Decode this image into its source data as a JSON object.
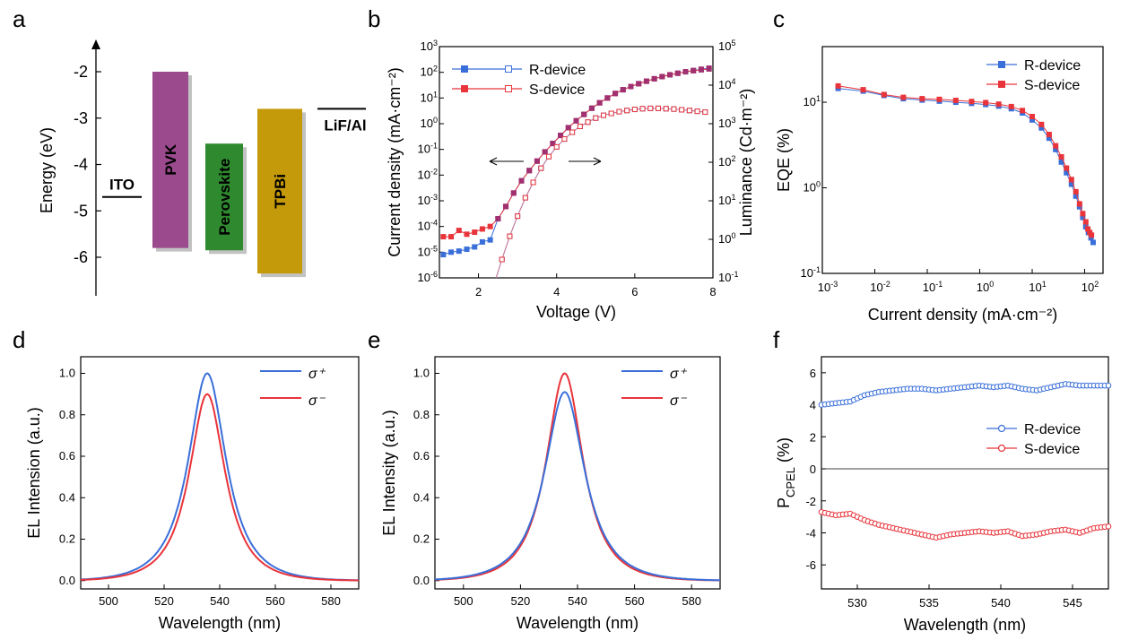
{
  "colors": {
    "blue": "#3a6fd9",
    "red": "#e8343a",
    "purple": "#a03070",
    "pvk": "#9b4a8e",
    "perovskite": "#2f8a2f",
    "tpbi": "#c59a0a"
  },
  "chart_data": [
    {
      "panel": "a",
      "type": "bar",
      "title": "",
      "ylabel": "Energy (eV)",
      "ylim": [
        -6.9,
        -1.4
      ],
      "yticks": [
        -2,
        -3,
        -4,
        -5,
        -6
      ],
      "categories": [
        "ITO",
        "PVK",
        "Perovskite",
        "TPBi",
        "LiF/Al"
      ],
      "levels": [
        {
          "name": "ITO",
          "value": -4.7
        },
        {
          "name": "PVK",
          "top": -2.0,
          "bottom": -5.8,
          "color": "pvk"
        },
        {
          "name": "Perovskite",
          "top": -3.55,
          "bottom": -5.85,
          "color": "perovskite"
        },
        {
          "name": "TPBi",
          "top": -2.8,
          "bottom": -6.35,
          "color": "tpbi"
        },
        {
          "name": "LiF/Al",
          "value": -2.8
        }
      ]
    },
    {
      "panel": "b",
      "type": "line",
      "xlabel": "Voltage (V)",
      "ylabel": "Current density (mA·cm⁻²)",
      "y2label": "Luminance (Cd·m⁻²)",
      "xlim": [
        1,
        8
      ],
      "xticks": [
        2,
        4,
        6,
        8
      ],
      "ylim_log": [
        -6,
        3
      ],
      "y2lim_log": [
        -1,
        5
      ],
      "yscale": "log",
      "y2scale": "log",
      "legend": "top-left",
      "series": [
        {
          "name": "R-device",
          "color": "blue",
          "axis": "left",
          "x": [
            1.1,
            1.3,
            1.5,
            1.7,
            1.9,
            2.1,
            2.3,
            2.5,
            2.7,
            2.9,
            3.1,
            3.3,
            3.5,
            3.7,
            3.9,
            4.1,
            4.3,
            4.5,
            4.7,
            4.9,
            5.1,
            5.3,
            5.5,
            5.7,
            5.9,
            6.1,
            6.3,
            6.5,
            6.7,
            6.9,
            7.1,
            7.3,
            7.5,
            7.7,
            7.9
          ],
          "y": [
            8e-06,
            1e-05,
            1.1e-05,
            1.3e-05,
            1.6e-05,
            2.5e-05,
            3e-05,
            0.0002,
            0.0006,
            0.002,
            0.006,
            0.015,
            0.035,
            0.08,
            0.17,
            0.35,
            0.7,
            1.3,
            2.3,
            4,
            6.5,
            10,
            15,
            21,
            28,
            36,
            45,
            56,
            68,
            80,
            92,
            105,
            118,
            132,
            145
          ]
        },
        {
          "name": "S-device",
          "color": "red",
          "axis": "left",
          "x": [
            1.1,
            1.3,
            1.5,
            1.7,
            1.9,
            2.1,
            2.3,
            2.5,
            2.7,
            2.9,
            3.1,
            3.3,
            3.5,
            3.7,
            3.9,
            4.1,
            4.3,
            4.5,
            4.7,
            4.9,
            5.1,
            5.3,
            5.5,
            5.7,
            5.9,
            6.1,
            6.3,
            6.5,
            6.7,
            6.9,
            7.1,
            7.3,
            7.5,
            7.7,
            7.9
          ],
          "y": [
            4e-05,
            4e-05,
            7e-05,
            5e-05,
            6e-05,
            8e-05,
            0.0001,
            0.0002,
            0.0006,
            0.002,
            0.006,
            0.015,
            0.035,
            0.08,
            0.17,
            0.35,
            0.7,
            1.3,
            2.3,
            4,
            6.5,
            10,
            15,
            21,
            28,
            36,
            45,
            56,
            68,
            80,
            92,
            105,
            115,
            125,
            135
          ]
        },
        {
          "name": "R-device luminance",
          "color": "blue",
          "axis": "right",
          "hollow": true,
          "x": [
            2.6,
            2.8,
            3.0,
            3.2,
            3.4,
            3.6,
            3.8,
            4.0,
            4.2,
            4.4,
            4.6,
            4.8,
            5.0,
            5.2,
            5.4,
            5.6,
            5.8,
            6.0,
            6.2,
            6.4,
            6.6,
            6.8,
            7.0,
            7.2,
            7.4,
            7.6,
            7.8
          ],
          "y": [
            0.3,
            1.2,
            4,
            12,
            30,
            70,
            140,
            250,
            400,
            600,
            850,
            1100,
            1400,
            1650,
            1850,
            2050,
            2200,
            2350,
            2450,
            2500,
            2500,
            2450,
            2400,
            2300,
            2200,
            2100,
            2000
          ]
        },
        {
          "name": "S-device luminance",
          "color": "red",
          "axis": "right",
          "hollow": true,
          "x": [
            2.6,
            2.8,
            3.0,
            3.2,
            3.4,
            3.6,
            3.8,
            4.0,
            4.2,
            4.4,
            4.6,
            4.8,
            5.0,
            5.2,
            5.4,
            5.6,
            5.8,
            6.0,
            6.2,
            6.4,
            6.6,
            6.8,
            7.0,
            7.2,
            7.4,
            7.6,
            7.8
          ],
          "y": [
            0.3,
            1.2,
            4,
            12,
            30,
            70,
            140,
            250,
            400,
            600,
            850,
            1100,
            1400,
            1650,
            1850,
            2050,
            2200,
            2350,
            2450,
            2500,
            2500,
            2450,
            2400,
            2300,
            2200,
            2100,
            2000
          ]
        }
      ],
      "legend_entries": [
        "R-device",
        "S-device"
      ]
    },
    {
      "panel": "c",
      "type": "line",
      "xlabel": "Current density (mA·cm⁻²)",
      "ylabel": "EQE (%)",
      "xscale": "log",
      "yscale": "log",
      "xlim_log": [
        -3,
        2.35
      ],
      "ylim_log": [
        -1,
        1.65
      ],
      "legend": "top-right",
      "series": [
        {
          "name": "R-device",
          "color": "blue",
          "x": [
            0.002,
            0.006,
            0.015,
            0.035,
            0.08,
            0.17,
            0.35,
            0.7,
            1.3,
            2.3,
            4,
            6.5,
            10,
            15,
            21,
            28,
            36,
            45,
            56,
            68,
            80,
            92,
            105,
            118,
            132,
            145
          ],
          "y": [
            14.5,
            13.5,
            12,
            11,
            10.6,
            10.3,
            10,
            9.7,
            9.4,
            9,
            8.4,
            7.5,
            6.2,
            5,
            3.8,
            2.8,
            2,
            1.5,
            1.1,
            0.8,
            0.6,
            0.45,
            0.35,
            0.3,
            0.26,
            0.23
          ]
        },
        {
          "name": "S-device",
          "color": "red",
          "x": [
            0.002,
            0.006,
            0.015,
            0.035,
            0.08,
            0.17,
            0.35,
            0.7,
            1.3,
            2.3,
            4,
            6.5,
            10,
            15,
            21,
            28,
            36,
            45,
            56,
            68,
            80,
            92,
            105,
            115,
            125,
            135
          ],
          "y": [
            15.5,
            14,
            12.3,
            11.4,
            11,
            10.8,
            10.5,
            10.2,
            9.9,
            9.5,
            8.9,
            8,
            6.8,
            5.5,
            4.2,
            3.1,
            2.3,
            1.7,
            1.25,
            0.9,
            0.65,
            0.5,
            0.4,
            0.33,
            0.3,
            0.28
          ]
        }
      ]
    },
    {
      "panel": "d",
      "type": "line",
      "xlabel": "Wavelength (nm)",
      "ylabel": "EL Intension (a.u.)",
      "xlim": [
        490,
        590
      ],
      "ylim": [
        -0.04,
        1.08
      ],
      "xticks": [
        500,
        520,
        540,
        560,
        580
      ],
      "yticks": [
        0.0,
        0.2,
        0.4,
        0.6,
        0.8,
        1.0
      ],
      "legend": "top-right",
      "series": [
        {
          "name": "σ⁺",
          "color": "blue",
          "peak": 535.5,
          "amplitude": 1.0,
          "width": 9.5
        },
        {
          "name": "σ⁻",
          "color": "red",
          "peak": 535.5,
          "amplitude": 0.9,
          "width": 9.0
        }
      ]
    },
    {
      "panel": "e",
      "type": "line",
      "xlabel": "Wavelength (nm)",
      "ylabel": "EL Intensity (a.u.)",
      "xlim": [
        490,
        590
      ],
      "ylim": [
        -0.04,
        1.08
      ],
      "xticks": [
        500,
        520,
        540,
        560,
        580
      ],
      "yticks": [
        0.0,
        0.2,
        0.4,
        0.6,
        0.8,
        1.0
      ],
      "legend": "top-right",
      "series": [
        {
          "name": "σ⁺",
          "color": "blue",
          "peak": 535.5,
          "amplitude": 0.91,
          "width": 9.8
        },
        {
          "name": "σ⁻",
          "color": "red",
          "peak": 535.5,
          "amplitude": 1.0,
          "width": 9.0
        }
      ]
    },
    {
      "panel": "f",
      "type": "line",
      "xlabel": "Wavelength (nm)",
      "ylabel": "P_CPEL (%)",
      "xlim": [
        527.5,
        547.5
      ],
      "ylim": [
        -7.5,
        7
      ],
      "xticks": [
        530,
        535,
        540,
        545
      ],
      "yticks": [
        6,
        4,
        2,
        0,
        -2,
        -4,
        -6
      ],
      "legend": "right",
      "series": [
        {
          "name": "R-device",
          "color": "blue",
          "x": [
            527.5,
            528.5,
            529.5,
            530.5,
            531.5,
            532.5,
            533.5,
            534.5,
            535.5,
            536.5,
            537.5,
            538.5,
            539.5,
            540.5,
            541.5,
            542.5,
            543.5,
            544.5,
            545.5,
            546.5,
            547.5
          ],
          "y": [
            4.0,
            4.1,
            4.2,
            4.6,
            4.8,
            4.9,
            5.0,
            5.0,
            4.9,
            5.0,
            5.1,
            5.2,
            5.1,
            5.2,
            5.0,
            4.9,
            5.1,
            5.3,
            5.2,
            5.2,
            5.2
          ]
        },
        {
          "name": "S-device",
          "color": "red",
          "x": [
            527.5,
            528.5,
            529.5,
            530.5,
            531.5,
            532.5,
            533.5,
            534.5,
            535.5,
            536.5,
            537.5,
            538.5,
            539.5,
            540.5,
            541.5,
            542.5,
            543.5,
            544.5,
            545.5,
            546.5,
            547.5
          ],
          "y": [
            -2.7,
            -2.9,
            -2.8,
            -3.2,
            -3.5,
            -3.7,
            -3.9,
            -4.1,
            -4.3,
            -4.1,
            -4.0,
            -3.9,
            -4.0,
            -3.9,
            -4.2,
            -4.1,
            -3.9,
            -3.8,
            -4.0,
            -3.7,
            -3.6
          ]
        }
      ]
    }
  ]
}
